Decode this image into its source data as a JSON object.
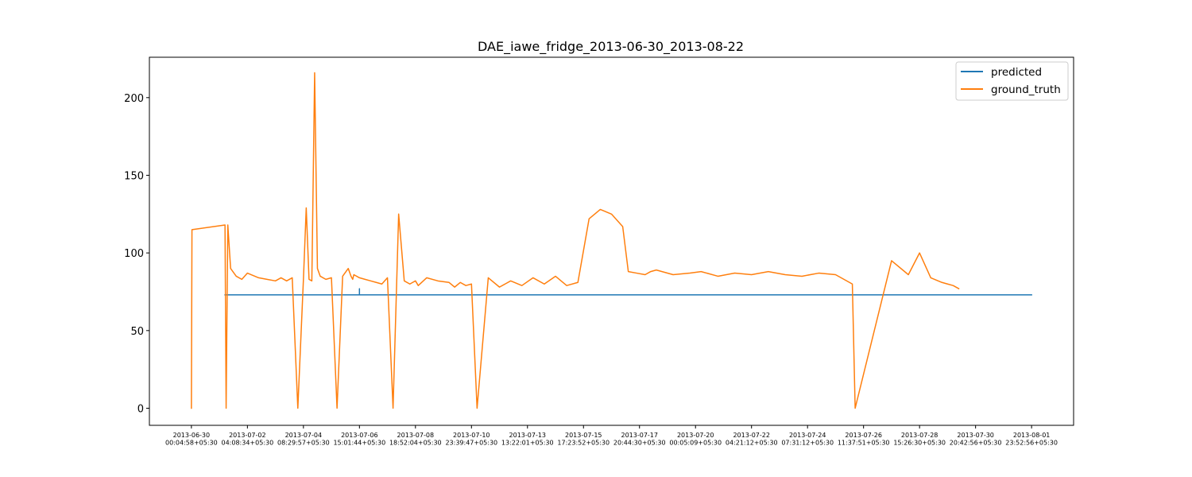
{
  "chart_data": {
    "type": "line",
    "title": "DAE_iawe_fridge_2013-06-30_2013-08-22",
    "xlabel": "",
    "ylabel": "",
    "ylim": [
      -11,
      226
    ],
    "yticks": [
      0,
      50,
      100,
      150,
      200
    ],
    "xlim": [
      -0.75,
      15.75
    ],
    "xticks": [
      {
        "pos": 0,
        "line1": "2013-06-30",
        "line2": "00:04:58+05:30"
      },
      {
        "pos": 1,
        "line1": "2013-07-02",
        "line2": "04:08:34+05:30"
      },
      {
        "pos": 2,
        "line1": "2013-07-04",
        "line2": "08:29:57+05:30"
      },
      {
        "pos": 3,
        "line1": "2013-07-06",
        "line2": "15:01:44+05:30"
      },
      {
        "pos": 4,
        "line1": "2013-07-08",
        "line2": "18:52:04+05:30"
      },
      {
        "pos": 5,
        "line1": "2013-07-10",
        "line2": "23:39:47+05:30"
      },
      {
        "pos": 6,
        "line1": "2013-07-13",
        "line2": "13:22:01+05:30"
      },
      {
        "pos": 7,
        "line1": "2013-07-15",
        "line2": "17:23:52+05:30"
      },
      {
        "pos": 8,
        "line1": "2013-07-17",
        "line2": "20:44:30+05:30"
      },
      {
        "pos": 9,
        "line1": "2013-07-20",
        "line2": "00:05:09+05:30"
      },
      {
        "pos": 10,
        "line1": "2013-07-22",
        "line2": "04:21:12+05:30"
      },
      {
        "pos": 11,
        "line1": "2013-07-24",
        "line2": "07:31:12+05:30"
      },
      {
        "pos": 12,
        "line1": "2013-07-26",
        "line2": "11:37:51+05:30"
      },
      {
        "pos": 13,
        "line1": "2013-07-28",
        "line2": "15:26:30+05:30"
      },
      {
        "pos": 14,
        "line1": "2013-07-30",
        "line2": "20:42:56+05:30"
      },
      {
        "pos": 15,
        "line1": "2013-08-01",
        "line2": "23:52:56+05:30"
      }
    ],
    "grid": false,
    "legend_position": "top-right",
    "series": [
      {
        "name": "predicted",
        "color": "#1f77b4",
        "x": [
          0.6,
          3.0,
          3.0,
          3.0,
          15.0
        ],
        "y": [
          73,
          73,
          77,
          73,
          73
        ]
      },
      {
        "name": "ground_truth",
        "color": "#ff7f0e",
        "x": [
          0.0,
          0.01,
          0.6,
          0.62,
          0.65,
          0.7,
          0.8,
          0.9,
          1.0,
          1.2,
          1.35,
          1.5,
          1.6,
          1.7,
          1.8,
          1.9,
          2.0,
          2.05,
          2.1,
          2.15,
          2.2,
          2.25,
          2.3,
          2.4,
          2.5,
          2.6,
          2.7,
          2.8,
          2.85,
          2.88,
          2.9,
          3.0,
          3.1,
          3.2,
          3.3,
          3.4,
          3.5,
          3.6,
          3.7,
          3.8,
          3.9,
          3.95,
          4.0,
          4.05,
          4.2,
          4.4,
          4.6,
          4.7,
          4.8,
          4.9,
          5.0,
          5.1,
          5.3,
          5.5,
          5.7,
          5.9,
          6.1,
          6.3,
          6.5,
          6.7,
          6.9,
          7.1,
          7.3,
          7.5,
          7.7,
          7.8,
          7.95,
          8.1,
          8.2,
          8.3,
          8.6,
          8.9,
          9.1,
          9.4,
          9.7,
          10.0,
          10.3,
          10.6,
          10.9,
          11.2,
          11.5,
          11.8,
          11.85,
          12.5,
          12.8,
          13.0,
          13.2,
          13.4,
          13.5,
          13.6,
          13.7
        ],
        "y": [
          0,
          115,
          118,
          0,
          118,
          90,
          85,
          83,
          87,
          84,
          83,
          82,
          84,
          82,
          84,
          0,
          83,
          129,
          83,
          82,
          216,
          90,
          85,
          83,
          84,
          0,
          85,
          90,
          85,
          83,
          86,
          84,
          83,
          82,
          81,
          80,
          84,
          0,
          125,
          82,
          80,
          81,
          82,
          79,
          84,
          82,
          81,
          78,
          81,
          79,
          80,
          0,
          84,
          78,
          82,
          79,
          84,
          80,
          85,
          79,
          81,
          122,
          128,
          125,
          117,
          88,
          87,
          86,
          88,
          89,
          86,
          87,
          88,
          85,
          87,
          86,
          88,
          86,
          85,
          87,
          86,
          80,
          0,
          95,
          86,
          100,
          84,
          81,
          80,
          79,
          77
        ]
      }
    ]
  }
}
